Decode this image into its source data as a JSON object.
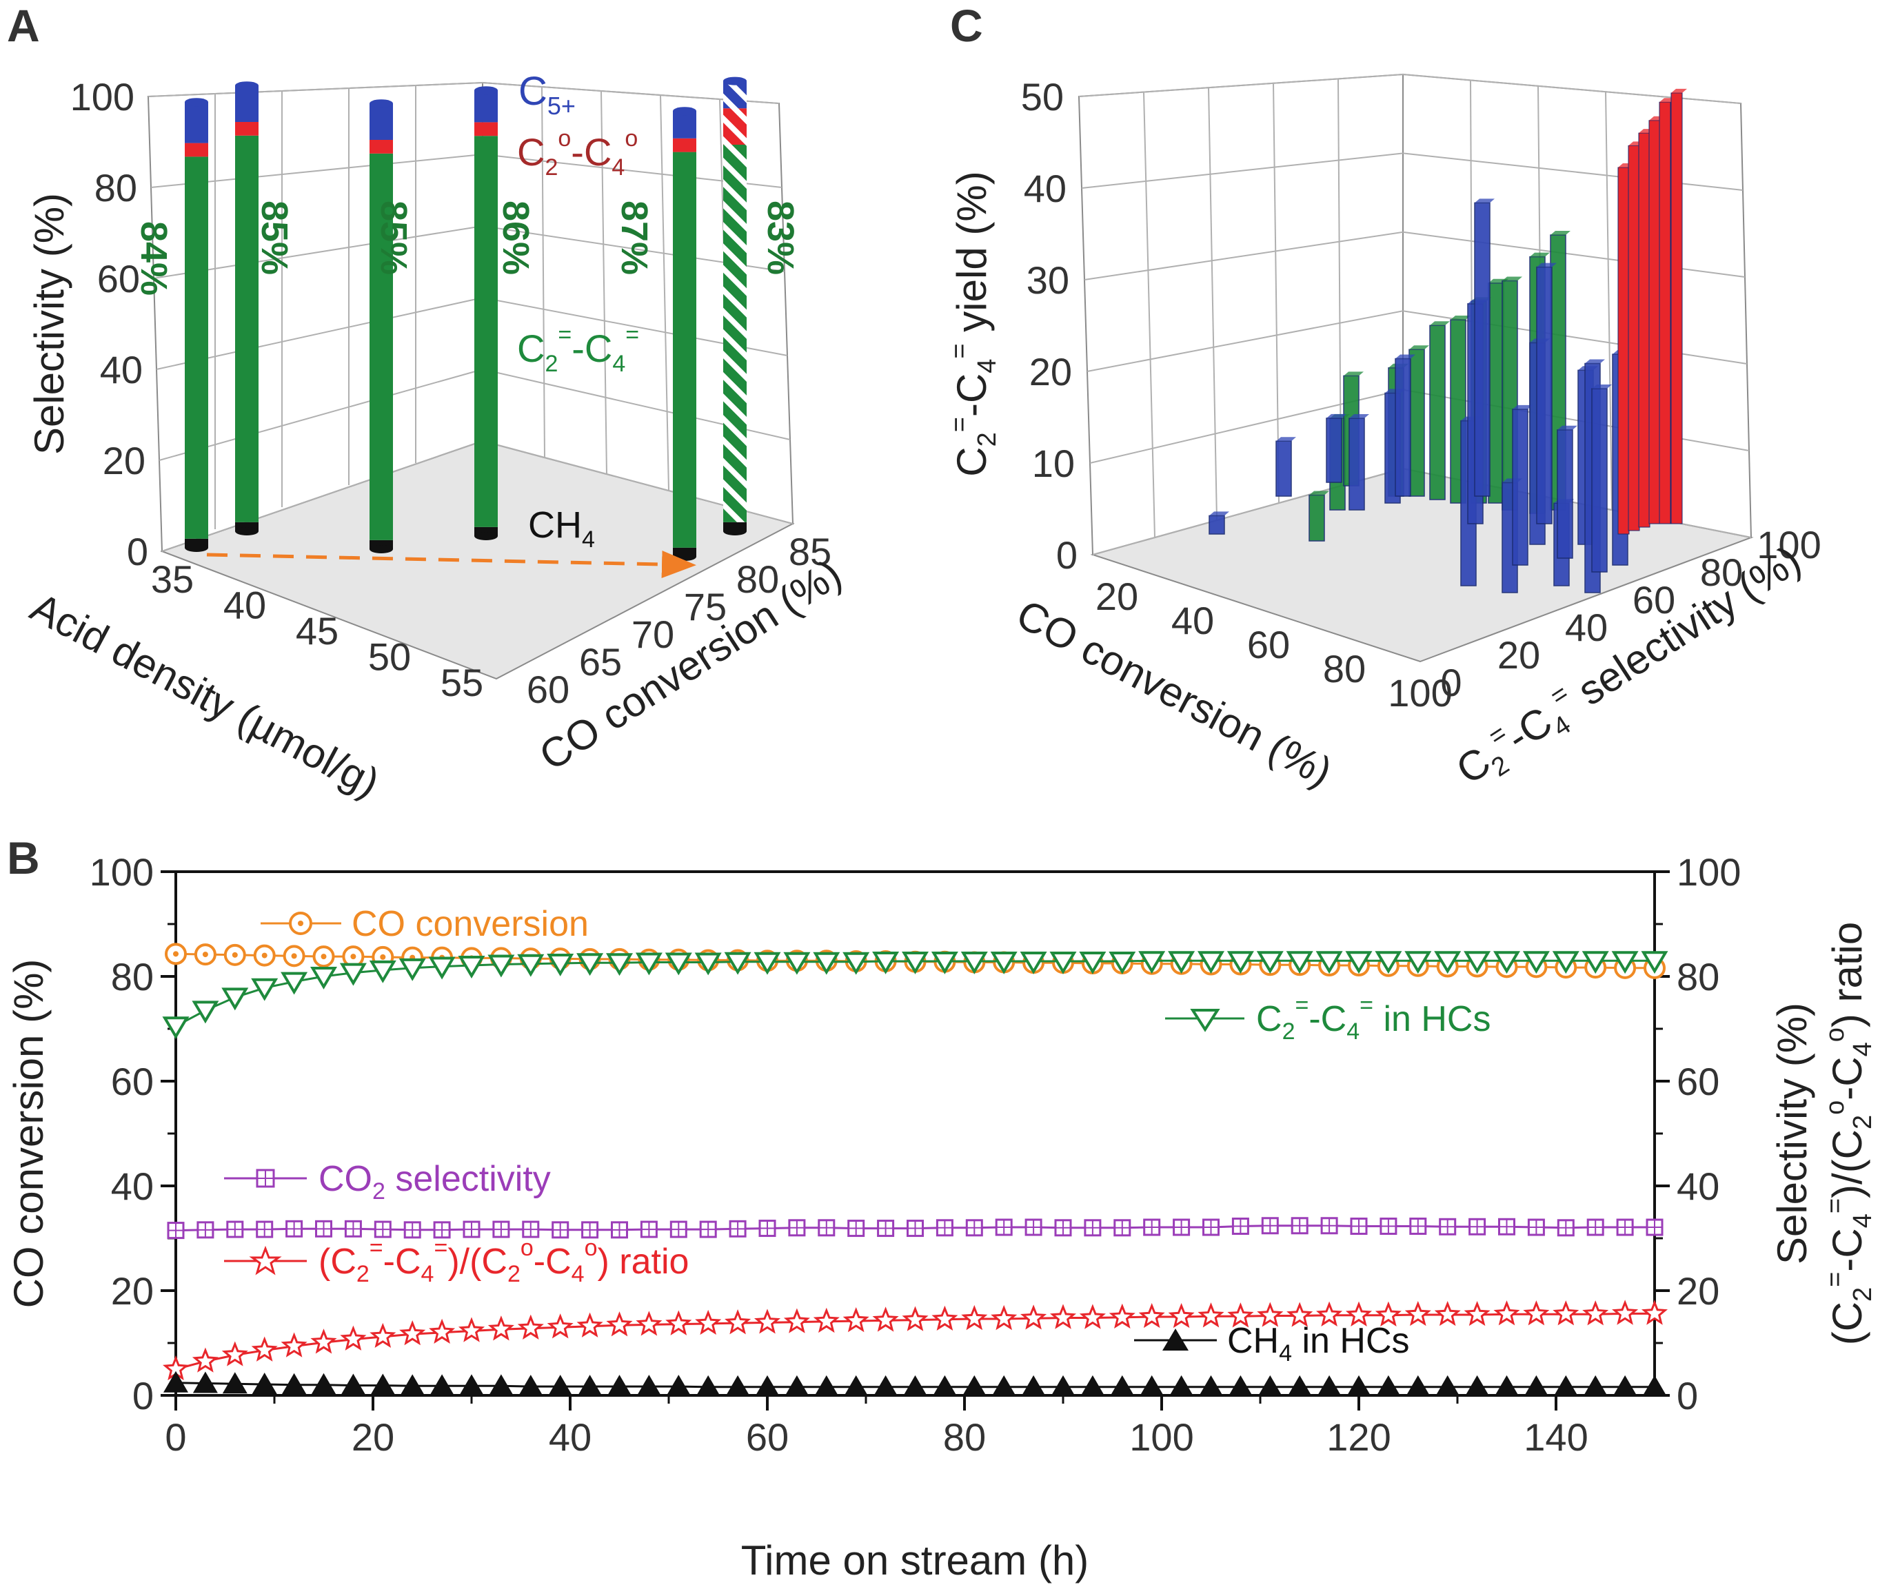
{
  "figure": {
    "panel_letters": [
      "A",
      "B",
      "C"
    ]
  },
  "colors": {
    "green": "#1e8a3c",
    "red": "#e8262b",
    "blue": "#2f45b5",
    "black": "#111111",
    "orange": "#f08a24",
    "purple": "#9b3db8",
    "dashed_arrow": "#f07e26"
  },
  "chart_data": [
    {
      "id": "A",
      "type": "bar",
      "projection": "3d",
      "ylabel": "Selectivity (%)",
      "xlabel": "Acid density (µmol/g)",
      "zlabel": "CO conversion (%)",
      "ylim": [
        0,
        100
      ],
      "yticks": [
        "0",
        "20",
        "40",
        "60",
        "80",
        "100"
      ],
      "xticks": [
        "35",
        "40",
        "45",
        "50",
        "55"
      ],
      "zticks": [
        "60",
        "65",
        "70",
        "75",
        "80",
        "85"
      ],
      "series_labels": {
        "c5": "C5+",
        "paraffins": "C2o-C4o",
        "olefins": "C2=-C4=",
        "ch4": "CH4"
      },
      "bars": [
        {
          "label": "84%",
          "olefins": 84,
          "paraffins": 3,
          "c5": 9,
          "ch4": 2,
          "hatched": false
        },
        {
          "label": "85%",
          "olefins": 85,
          "paraffins": 3,
          "c5": 8,
          "ch4": 2,
          "hatched": false
        },
        {
          "label": "85%",
          "olefins": 85,
          "paraffins": 3,
          "c5": 8,
          "ch4": 2,
          "hatched": false
        },
        {
          "label": "86%",
          "olefins": 86,
          "paraffins": 3,
          "c5": 7,
          "ch4": 2,
          "hatched": false
        },
        {
          "label": "87%",
          "olefins": 87,
          "paraffins": 3,
          "c5": 6,
          "ch4": 2,
          "hatched": false
        },
        {
          "label": "83%",
          "olefins": 83,
          "paraffins": 8,
          "c5": 6,
          "ch4": 2,
          "hatched": true
        }
      ],
      "grid": true
    },
    {
      "id": "C",
      "type": "bar",
      "projection": "3d",
      "ylabel": "C2=-C4= yield (%)",
      "xlabel": "CO conversion (%)",
      "zlabel": "C2=-C4= selectivity (%)",
      "ylim": [
        0,
        50
      ],
      "yticks": [
        "0",
        "10",
        "20",
        "30",
        "40",
        "50"
      ],
      "xticks": [
        "20",
        "40",
        "60",
        "80",
        "100"
      ],
      "zticks": [
        "0",
        "20",
        "40",
        "60",
        "80",
        "100"
      ],
      "series": [
        {
          "name": "blue",
          "values": [
            2,
            6,
            7,
            10,
            12,
            15,
            18,
            24,
            32,
            12,
            17,
            22,
            28,
            9,
            14,
            19,
            25,
            20,
            23
          ]
        },
        {
          "name": "green",
          "values": [
            5,
            10,
            12,
            14,
            16,
            19,
            20,
            22,
            24,
            25,
            28,
            30
          ]
        },
        {
          "name": "red",
          "values": [
            40,
            42,
            43,
            44,
            46,
            47
          ]
        }
      ],
      "grid": true
    },
    {
      "id": "B",
      "type": "line",
      "xlabel": "Time on stream (h)",
      "ylabel": "CO conversion (%)",
      "ylabel_right": "Selectivity (%) (C2=-C4=)/(C2o-C4o) ratio",
      "xlim": [
        0,
        150
      ],
      "ylim": [
        0,
        100
      ],
      "ylim_right": [
        0,
        100
      ],
      "xticks": [
        "0",
        "20",
        "40",
        "60",
        "80",
        "100",
        "120",
        "140"
      ],
      "yticks": [
        "0",
        "20",
        "40",
        "60",
        "80",
        "100"
      ],
      "x": [
        0,
        3,
        6,
        9,
        12,
        15,
        18,
        21,
        24,
        27,
        30,
        33,
        36,
        39,
        42,
        45,
        48,
        51,
        54,
        57,
        60,
        63,
        66,
        69,
        72,
        75,
        78,
        81,
        84,
        87,
        90,
        93,
        96,
        99,
        102,
        105,
        108,
        111,
        114,
        117,
        120,
        123,
        126,
        129,
        132,
        135,
        138,
        141,
        144,
        147,
        150
      ],
      "series": [
        {
          "name": "CO conversion",
          "axis": "left",
          "color": "#f08a24",
          "marker": "circle-dot",
          "values": [
            84.3,
            84.2,
            84.1,
            84.0,
            83.9,
            83.8,
            83.8,
            83.7,
            83.6,
            83.6,
            83.5,
            83.5,
            83.4,
            83.4,
            83.3,
            83.3,
            83.2,
            83.2,
            83.1,
            83.1,
            83.0,
            83.0,
            83.0,
            82.9,
            82.9,
            82.8,
            82.8,
            82.7,
            82.7,
            82.6,
            82.6,
            82.5,
            82.5,
            82.4,
            82.4,
            82.3,
            82.3,
            82.2,
            82.2,
            82.1,
            82.1,
            82.0,
            82.0,
            81.9,
            81.9,
            81.8,
            81.8,
            81.7,
            81.7,
            81.6,
            81.6
          ]
        },
        {
          "name": "C2=-C4= in HCs",
          "axis": "right",
          "color": "#1e8a3c",
          "marker": "triangle-down",
          "values": [
            70.5,
            73.5,
            76.0,
            77.8,
            79.0,
            80.0,
            80.7,
            81.2,
            81.6,
            81.9,
            82.1,
            82.3,
            82.4,
            82.5,
            82.6,
            82.6,
            82.7,
            82.7,
            82.7,
            82.8,
            82.8,
            82.8,
            82.8,
            82.8,
            82.9,
            82.9,
            82.9,
            82.9,
            82.9,
            82.9,
            82.9,
            82.9,
            82.9,
            83.0,
            83.0,
            83.0,
            83.0,
            83.0,
            83.0,
            83.0,
            83.0,
            83.0,
            83.0,
            83.0,
            83.0,
            83.0,
            83.0,
            83.0,
            83.0,
            83.0,
            83.0
          ]
        },
        {
          "name": "CO2 selectivity",
          "axis": "right",
          "color": "#9b3db8",
          "marker": "square-plus",
          "values": [
            31.5,
            31.6,
            31.7,
            31.7,
            31.8,
            31.8,
            31.8,
            31.7,
            31.6,
            31.6,
            31.7,
            31.7,
            31.7,
            31.6,
            31.6,
            31.6,
            31.7,
            31.7,
            31.7,
            31.8,
            31.9,
            32.0,
            32.0,
            31.9,
            31.9,
            31.9,
            32.0,
            32.0,
            32.1,
            32.1,
            32.0,
            32.0,
            32.0,
            32.1,
            32.1,
            32.1,
            32.3,
            32.4,
            32.4,
            32.4,
            32.3,
            32.3,
            32.3,
            32.2,
            32.2,
            32.2,
            32.1,
            32.0,
            32.1,
            32.1,
            32.1
          ]
        },
        {
          "name": "(C2=-C4=)/(C2o-C4o) ratio",
          "axis": "right",
          "color": "#e8262b",
          "marker": "star",
          "values": [
            5.0,
            6.5,
            7.7,
            8.6,
            9.4,
            10.1,
            10.7,
            11.2,
            11.7,
            12.0,
            12.3,
            12.6,
            12.8,
            13.0,
            13.2,
            13.4,
            13.5,
            13.6,
            13.7,
            13.8,
            13.9,
            14.0,
            14.1,
            14.2,
            14.3,
            14.4,
            14.5,
            14.6,
            14.6,
            14.7,
            14.8,
            14.8,
            14.9,
            15.0,
            15.0,
            15.1,
            15.1,
            15.2,
            15.2,
            15.3,
            15.3,
            15.3,
            15.4,
            15.4,
            15.4,
            15.5,
            15.5,
            15.5,
            15.5,
            15.6,
            15.6
          ]
        },
        {
          "name": "CH4 in HCs",
          "axis": "right",
          "color": "#111111",
          "marker": "triangle-up",
          "values": [
            2.4,
            2.3,
            2.2,
            2.1,
            2.0,
            2.0,
            1.9,
            1.9,
            1.8,
            1.8,
            1.8,
            1.8,
            1.7,
            1.7,
            1.7,
            1.7,
            1.7,
            1.7,
            1.6,
            1.6,
            1.6,
            1.6,
            1.6,
            1.6,
            1.6,
            1.6,
            1.6,
            1.6,
            1.6,
            1.6,
            1.6,
            1.6,
            1.6,
            1.6,
            1.6,
            1.6,
            1.6,
            1.6,
            1.6,
            1.6,
            1.6,
            1.6,
            1.6,
            1.6,
            1.6,
            1.6,
            1.6,
            1.6,
            1.6,
            1.6,
            1.6
          ]
        }
      ],
      "legend": {
        "co_conversion": "CO conversion",
        "olefins": "C2=-C4= in HCs",
        "co2": "CO2 selectivity",
        "ratio": "(C2=-C4=)/(C2o-C4o) ratio",
        "ch4": "CH4 in HCs"
      },
      "grid": false
    }
  ]
}
